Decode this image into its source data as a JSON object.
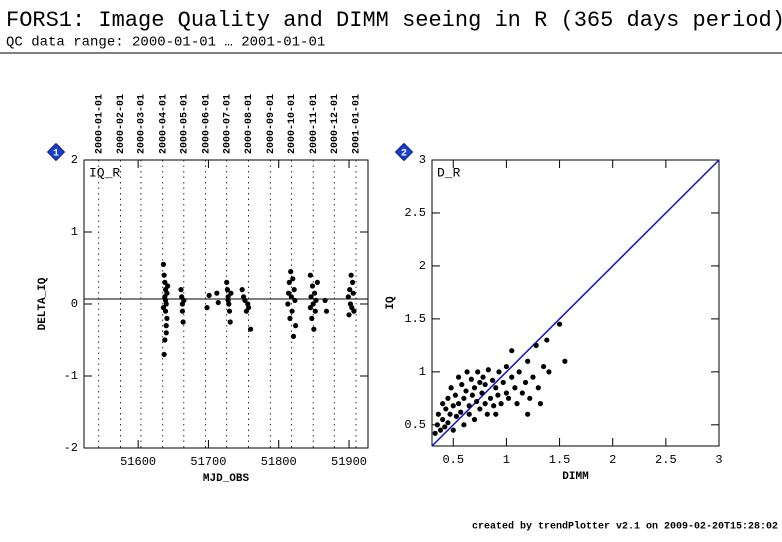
{
  "header": {
    "title": "FORS1: Image Quality and DIMM seeing in R (365 days period)",
    "subtitle": "QC data range: 2000-01-01 … 2001-01-01"
  },
  "footer": "created by trendPlotter v2.1 on 2009-02-20T15:28:02",
  "chart_data": [
    {
      "type": "scatter",
      "badge": "1",
      "panel_label": "IQ_R",
      "x_label": "MJD_OBS",
      "y_label": "DELTA_IQ",
      "color": "#000000",
      "xlim": [
        51523,
        51927
      ],
      "xticks": [
        51600,
        51700,
        51800,
        51900
      ],
      "ylim": [
        -2,
        2
      ],
      "yticks": [
        -2,
        -1,
        0,
        1,
        2
      ],
      "x2ticks": [
        {
          "value": 51544,
          "label": "2000-01-01"
        },
        {
          "value": 51575,
          "label": "2000-02-01"
        },
        {
          "value": 51604,
          "label": "2000-03-01"
        },
        {
          "value": 51635,
          "label": "2000-04-01"
        },
        {
          "value": 51665,
          "label": "2000-05-01"
        },
        {
          "value": 51696,
          "label": "2000-06-01"
        },
        {
          "value": 51726,
          "label": "2000-07-01"
        },
        {
          "value": 51757,
          "label": "2000-08-01"
        },
        {
          "value": 51788,
          "label": "2000-09-01"
        },
        {
          "value": 51818,
          "label": "2000-10-01"
        },
        {
          "value": 51849,
          "label": "2000-11-01"
        },
        {
          "value": 51879,
          "label": "2000-12-01"
        },
        {
          "value": 51910,
          "label": "2001-01-01"
        }
      ],
      "hline": 0.07,
      "x": [
        51636,
        51637,
        51637,
        51638,
        51638,
        51638,
        51639,
        51639,
        51640,
        51640,
        51641,
        51641,
        51636,
        51639,
        51640,
        51642,
        51661,
        51662,
        51663,
        51663,
        51664,
        51665,
        51698,
        51701,
        51712,
        51714,
        51726,
        51727,
        51728,
        51729,
        51730,
        51731,
        51732,
        51728,
        51748,
        51750,
        51752,
        51754,
        51756,
        51757,
        51760,
        51813,
        51815,
        51816,
        51817,
        51818,
        51819,
        51820,
        51821,
        51822,
        51823,
        51824,
        51814,
        51845,
        51846,
        51847,
        51848,
        51849,
        51850,
        51851,
        51852,
        51853,
        51855,
        51845,
        51866,
        51868,
        51899,
        51900,
        51901,
        51902,
        51903,
        51904,
        51905,
        51906,
        51907
      ],
      "values": [
        0.55,
        0.4,
        -0.7,
        0.3,
        0.1,
        -0.5,
        0.2,
        -0.1,
        0.0,
        -0.3,
        0.15,
        -0.2,
        -0.05,
        0.05,
        -0.4,
        0.25,
        0.2,
        0.1,
        -0.1,
        0.0,
        -0.25,
        0.05,
        -0.05,
        0.12,
        0.15,
        0.02,
        0.3,
        0.2,
        0.1,
        0.0,
        -0.1,
        -0.25,
        0.15,
        0.05,
        0.2,
        0.1,
        0.05,
        -0.1,
        0.0,
        -0.05,
        -0.35,
        0.0,
        0.3,
        -0.2,
        0.45,
        0.1,
        -0.1,
        0.35,
        -0.45,
        0.2,
        0.05,
        -0.3,
        0.15,
        0.4,
        0.1,
        -0.2,
        0.25,
        0.0,
        -0.35,
        0.15,
        -0.1,
        0.05,
        0.3,
        -0.05,
        0.05,
        -0.1,
        0.1,
        -0.15,
        0.2,
        0.0,
        0.4,
        -0.05,
        0.3,
        0.15,
        -0.1
      ]
    },
    {
      "type": "scatter",
      "badge": "2",
      "panel_label": "D_R",
      "x_label": "DIMM",
      "y_label": "IQ",
      "color": "#000000",
      "xlim": [
        0.3,
        3
      ],
      "xticks": [
        0.5,
        1,
        1.5,
        2,
        2.5,
        3
      ],
      "ylim": [
        0.3,
        3
      ],
      "yticks": [
        0.5,
        1,
        1.5,
        2,
        2.5,
        3
      ],
      "identity_line": true,
      "identity_color": "#1010c8",
      "x": [
        0.33,
        0.35,
        0.36,
        0.38,
        0.4,
        0.4,
        0.42,
        0.43,
        0.45,
        0.45,
        0.47,
        0.48,
        0.5,
        0.5,
        0.52,
        0.53,
        0.55,
        0.55,
        0.57,
        0.58,
        0.6,
        0.6,
        0.62,
        0.63,
        0.65,
        0.65,
        0.67,
        0.68,
        0.7,
        0.7,
        0.72,
        0.73,
        0.75,
        0.75,
        0.77,
        0.78,
        0.8,
        0.8,
        0.82,
        0.83,
        0.85,
        0.87,
        0.88,
        0.9,
        0.92,
        0.93,
        0.95,
        0.97,
        1.0,
        1.0,
        1.02,
        1.05,
        1.05,
        1.08,
        1.1,
        1.12,
        1.15,
        1.18,
        1.2,
        1.22,
        1.25,
        1.28,
        1.3,
        1.32,
        1.35,
        1.38,
        1.4,
        1.5,
        1.55,
        1.2,
        0.9
      ],
      "values": [
        0.42,
        0.5,
        0.6,
        0.45,
        0.7,
        0.55,
        0.48,
        0.65,
        0.75,
        0.52,
        0.6,
        0.85,
        0.68,
        0.45,
        0.78,
        0.58,
        0.95,
        0.7,
        0.62,
        0.88,
        0.75,
        0.5,
        0.82,
        1.0,
        0.68,
        0.6,
        0.93,
        0.78,
        0.85,
        0.55,
        0.72,
        1.0,
        0.9,
        0.65,
        0.8,
        0.95,
        0.7,
        0.88,
        0.6,
        1.02,
        0.75,
        0.92,
        0.68,
        0.85,
        0.78,
        1.0,
        0.7,
        0.9,
        0.8,
        1.05,
        0.75,
        0.95,
        1.2,
        0.85,
        0.7,
        1.0,
        0.8,
        0.9,
        1.1,
        0.75,
        0.95,
        1.25,
        0.85,
        0.7,
        1.05,
        1.3,
        1.0,
        1.45,
        1.1,
        0.6,
        0.6
      ]
    }
  ]
}
